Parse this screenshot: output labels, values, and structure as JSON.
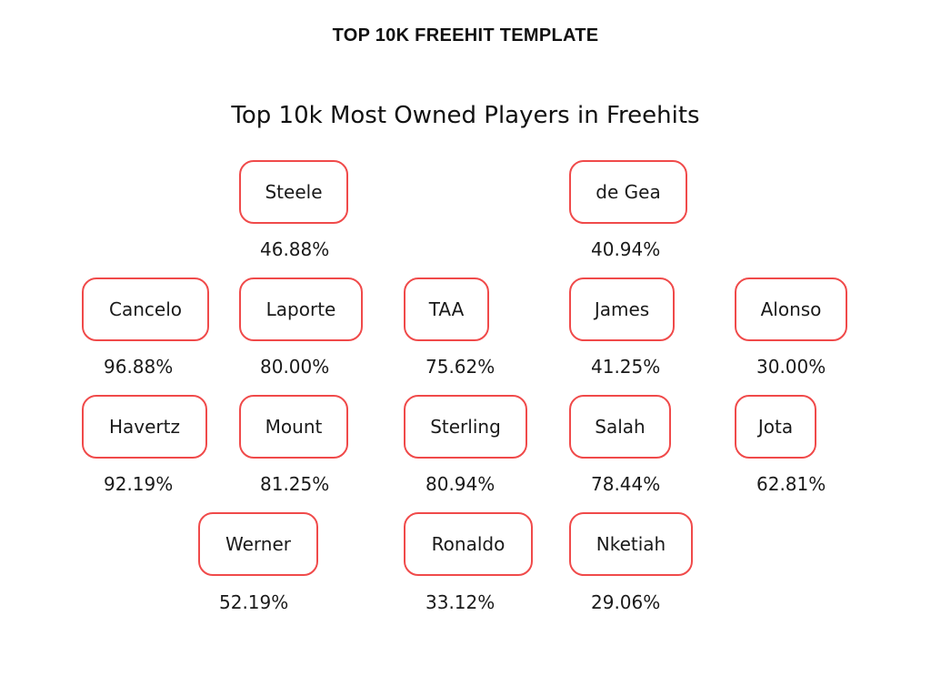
{
  "header": {
    "title": "TOP 10K FREEHIT TEMPLATE"
  },
  "figure": {
    "title": "Top 10k Most Owned Players in Freehits",
    "players": [
      {
        "name": "Steele",
        "ownership": "46.88%"
      },
      {
        "name": "de Gea",
        "ownership": "40.94%"
      },
      {
        "name": "Cancelo",
        "ownership": "96.88%"
      },
      {
        "name": "Laporte",
        "ownership": "80.00%"
      },
      {
        "name": "TAA",
        "ownership": "75.62%"
      },
      {
        "name": "James",
        "ownership": "41.25%"
      },
      {
        "name": "Alonso",
        "ownership": "30.00%"
      },
      {
        "name": "Havertz",
        "ownership": "92.19%"
      },
      {
        "name": "Mount",
        "ownership": "81.25%"
      },
      {
        "name": "Sterling",
        "ownership": "80.94%"
      },
      {
        "name": "Salah",
        "ownership": "78.44%"
      },
      {
        "name": "Jota",
        "ownership": "62.81%"
      },
      {
        "name": "Werner",
        "ownership": "52.19%"
      },
      {
        "name": "Ronaldo",
        "ownership": "33.12%"
      },
      {
        "name": "Nketiah",
        "ownership": "29.06%"
      }
    ],
    "colors": {
      "box_border": "#f04a4a",
      "text": "#1a1a1a"
    }
  }
}
